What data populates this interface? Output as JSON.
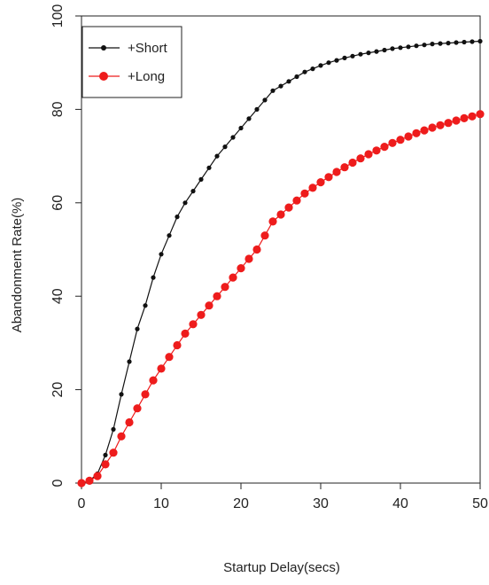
{
  "chart_data": {
    "type": "line",
    "xlabel": "Startup Delay(secs)",
    "ylabel": "Abandonment Rate(%)",
    "xlim": [
      0,
      50
    ],
    "ylim": [
      0,
      100
    ],
    "xticks": [
      "0",
      "10",
      "20",
      "30",
      "40",
      "50"
    ],
    "yticks": [
      "0",
      "20",
      "40",
      "60",
      "80",
      "100"
    ],
    "legend_position": "top-left",
    "grid": false,
    "series": [
      {
        "name": "Short",
        "legend_label": "+Short",
        "color": "#111111",
        "marker": "small-dot",
        "x": [
          0,
          1,
          2,
          3,
          4,
          5,
          6,
          7,
          8,
          9,
          10,
          11,
          12,
          13,
          14,
          15,
          16,
          17,
          18,
          19,
          20,
          21,
          22,
          23,
          24,
          25,
          26,
          27,
          28,
          29,
          30,
          31,
          32,
          33,
          34,
          35,
          36,
          37,
          38,
          39,
          40,
          41,
          42,
          43,
          44,
          45,
          46,
          47,
          48,
          49,
          50
        ],
        "y": [
          0,
          0.5,
          2,
          6,
          11.5,
          19,
          26,
          33,
          38,
          44,
          49,
          53,
          57,
          60,
          62.5,
          65,
          67.5,
          70,
          72,
          74,
          76,
          78,
          80,
          82,
          84,
          85,
          86,
          87,
          88,
          88.7,
          89.4,
          90,
          90.5,
          91,
          91.4,
          91.8,
          92.1,
          92.4,
          92.7,
          93,
          93.2,
          93.4,
          93.6,
          93.8,
          94,
          94.1,
          94.2,
          94.3,
          94.4,
          94.5,
          94.6
        ]
      },
      {
        "name": "Long",
        "legend_label": "+Long",
        "color": "#ee1c1c",
        "marker": "large-dot",
        "x": [
          0,
          1,
          2,
          3,
          4,
          5,
          6,
          7,
          8,
          9,
          10,
          11,
          12,
          13,
          14,
          15,
          16,
          17,
          18,
          19,
          20,
          21,
          22,
          23,
          24,
          25,
          26,
          27,
          28,
          29,
          30,
          31,
          32,
          33,
          34,
          35,
          36,
          37,
          38,
          39,
          40,
          41,
          42,
          43,
          44,
          45,
          46,
          47,
          48,
          49,
          50
        ],
        "y": [
          0,
          0.5,
          1.5,
          4,
          6.5,
          10,
          13,
          16,
          19,
          22,
          24.5,
          27,
          29.5,
          32,
          34,
          36,
          38,
          40,
          42,
          44,
          46,
          48,
          50,
          53,
          56,
          57.5,
          59,
          60.5,
          62,
          63.2,
          64.4,
          65.5,
          66.6,
          67.6,
          68.6,
          69.5,
          70.4,
          71.2,
          72,
          72.8,
          73.5,
          74.2,
          74.9,
          75.5,
          76.1,
          76.6,
          77.1,
          77.6,
          78.1,
          78.5,
          79
        ]
      }
    ]
  }
}
